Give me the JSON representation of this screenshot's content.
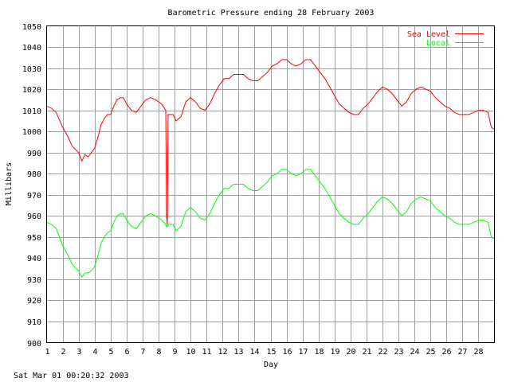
{
  "chart_data": {
    "type": "line",
    "title": "Barometric Pressure ending 28 February 2003",
    "xlabel": "Day",
    "ylabel": "Millibars",
    "xlim": [
      1,
      29
    ],
    "ylim": [
      900,
      1050
    ],
    "xticks": [
      "1",
      "2",
      "3",
      "4",
      "5",
      "6",
      "7",
      "8",
      "9",
      "10",
      "11",
      "12",
      "13",
      "14",
      "15",
      "16",
      "17",
      "18",
      "19",
      "20",
      "21",
      "22",
      "23",
      "24",
      "25",
      "26",
      "27",
      "28"
    ],
    "yticks": [
      "900",
      "910",
      "920",
      "930",
      "940",
      "950",
      "960",
      "970",
      "980",
      "990",
      "1000",
      "1010",
      "1020",
      "1030",
      "1040",
      "1050"
    ],
    "grid": true,
    "legend_position": "top-right",
    "series": [
      {
        "name": "Sea Level",
        "color": "#ff0000",
        "x": [
          1,
          1.3,
          1.6,
          2.0,
          2.3,
          2.6,
          3.0,
          3.2,
          3.4,
          3.6,
          3.8,
          4.0,
          4.2,
          4.4,
          4.6,
          4.8,
          5.0,
          5.2,
          5.4,
          5.6,
          5.8,
          6.0,
          6.3,
          6.6,
          6.9,
          7.2,
          7.5,
          7.8,
          8.0,
          8.2,
          8.45,
          8.5,
          8.55,
          8.6,
          8.7,
          8.9,
          9.1,
          9.4,
          9.7,
          10.0,
          10.3,
          10.6,
          10.9,
          11.2,
          11.5,
          11.8,
          12.1,
          12.4,
          12.7,
          13.0,
          13.3,
          13.6,
          13.9,
          14.2,
          14.5,
          14.8,
          15.1,
          15.4,
          15.7,
          16.0,
          16.3,
          16.6,
          16.9,
          17.2,
          17.5,
          17.8,
          18.1,
          18.4,
          18.7,
          19.0,
          19.3,
          19.6,
          19.9,
          20.2,
          20.5,
          20.8,
          21.1,
          21.4,
          21.7,
          22.0,
          22.3,
          22.6,
          22.9,
          23.2,
          23.5,
          23.8,
          24.1,
          24.4,
          24.7,
          25.0,
          25.3,
          25.6,
          25.9,
          26.2,
          26.5,
          26.8,
          27.1,
          27.4,
          27.7,
          28.0,
          28.3,
          28.6,
          28.8,
          29.0
        ],
        "values": [
          1012,
          1011,
          1009,
          1002,
          998,
          993,
          990,
          986,
          989,
          988,
          990,
          992,
          997,
          1003,
          1006,
          1008,
          1008,
          1012,
          1015,
          1016,
          1016,
          1013,
          1010,
          1009,
          1012,
          1015,
          1016,
          1015,
          1014,
          1013,
          1010,
          960,
          956,
          1008,
          1008,
          1008,
          1005,
          1007,
          1014,
          1016,
          1014,
          1011,
          1010,
          1013,
          1018,
          1022,
          1025,
          1025,
          1027,
          1027,
          1027,
          1025,
          1024,
          1024,
          1026,
          1028,
          1031,
          1032,
          1034,
          1034,
          1032,
          1031,
          1032,
          1034,
          1034,
          1031,
          1028,
          1025,
          1021,
          1017,
          1013,
          1011,
          1009,
          1008,
          1008,
          1011,
          1013,
          1016,
          1019,
          1021,
          1020,
          1018,
          1015,
          1012,
          1014,
          1018,
          1020,
          1021,
          1020,
          1019,
          1016,
          1014,
          1012,
          1011,
          1009,
          1008,
          1008,
          1008,
          1009,
          1010,
          1010,
          1009,
          1002,
          1001
        ]
      },
      {
        "name": "Local",
        "color": "#00ff00",
        "x": [
          1,
          1.3,
          1.6,
          2.0,
          2.3,
          2.6,
          3.0,
          3.2,
          3.4,
          3.6,
          3.8,
          4.0,
          4.2,
          4.4,
          4.6,
          4.8,
          5.0,
          5.2,
          5.4,
          5.6,
          5.8,
          6.0,
          6.3,
          6.6,
          6.9,
          7.2,
          7.5,
          7.8,
          8.0,
          8.2,
          8.45,
          8.5,
          8.55,
          8.6,
          8.7,
          8.9,
          9.1,
          9.4,
          9.7,
          10.0,
          10.3,
          10.6,
          10.9,
          11.2,
          11.5,
          11.8,
          12.1,
          12.4,
          12.7,
          13.0,
          13.3,
          13.6,
          13.9,
          14.2,
          14.5,
          14.8,
          15.1,
          15.4,
          15.7,
          16.0,
          16.3,
          16.6,
          16.9,
          17.2,
          17.5,
          17.8,
          18.1,
          18.4,
          18.7,
          19.0,
          19.3,
          19.6,
          19.9,
          20.2,
          20.5,
          20.8,
          21.1,
          21.4,
          21.7,
          22.0,
          22.3,
          22.6,
          22.9,
          23.2,
          23.5,
          23.8,
          24.1,
          24.4,
          24.7,
          25.0,
          25.3,
          25.6,
          25.9,
          26.2,
          26.5,
          26.8,
          27.1,
          27.4,
          27.7,
          28.0,
          28.3,
          28.6,
          28.8,
          29.0
        ],
        "values": [
          957,
          956,
          954,
          946,
          942,
          937,
          934,
          931,
          933,
          933,
          934,
          936,
          941,
          947,
          950,
          952,
          953,
          957,
          960,
          961,
          961,
          958,
          955,
          954,
          957,
          960,
          961,
          960,
          959,
          958,
          956,
          955,
          955,
          956,
          956,
          956,
          953,
          955,
          962,
          964,
          962,
          959,
          958,
          961,
          966,
          970,
          973,
          973,
          975,
          975,
          975,
          973,
          972,
          972,
          974,
          976,
          979,
          980,
          982,
          982,
          980,
          979,
          980,
          982,
          982,
          979,
          976,
          973,
          969,
          965,
          961,
          959,
          957,
          956,
          956,
          959,
          961,
          964,
          967,
          969,
          968,
          966,
          963,
          960,
          962,
          966,
          968,
          969,
          968,
          967,
          964,
          962,
          960,
          959,
          957,
          956,
          956,
          956,
          957,
          958,
          958,
          957,
          950,
          949
        ]
      }
    ]
  },
  "footer": {
    "timestamp": "Sat Mar 01 00:20:32 2003"
  }
}
